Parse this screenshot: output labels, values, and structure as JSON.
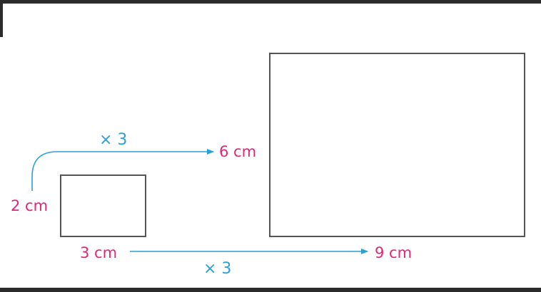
{
  "colors": {
    "length_label": "#e0277a",
    "scale_label": "#2aa0d8",
    "arrow": "#2aa0d8",
    "rect_stroke": "#555555",
    "frame": "#2b2b2b"
  },
  "small_rectangle": {
    "height_label": "2 cm",
    "width_label": "3 cm"
  },
  "large_rectangle": {
    "height_label": "6 cm",
    "width_label": "9 cm"
  },
  "height_arrow": {
    "label": "× 3"
  },
  "width_arrow": {
    "label": "× 3"
  }
}
